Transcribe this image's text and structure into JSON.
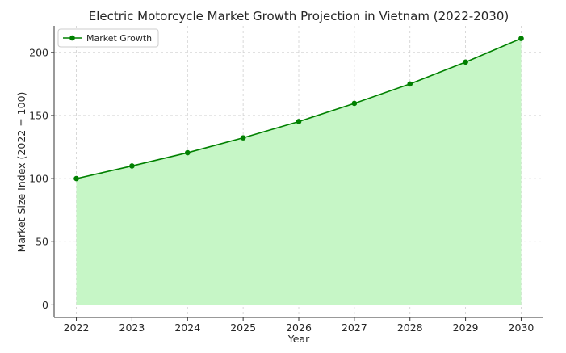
{
  "chart_data": {
    "type": "area",
    "title": "Electric Motorcycle Market Growth Projection in Vietnam (2022-2030)",
    "xlabel": "Year",
    "ylabel": "Market Size Index (2022 = 100)",
    "x": [
      2022,
      2023,
      2024,
      2025,
      2026,
      2027,
      2028,
      2029,
      2030
    ],
    "x_tick_labels": [
      "2022",
      "2023",
      "2024",
      "2025",
      "2026",
      "2027",
      "2028",
      "2029",
      "2030"
    ],
    "y_ticks": [
      0,
      50,
      100,
      150,
      200
    ],
    "y_tick_labels": [
      "0",
      "50",
      "100",
      "150",
      "200"
    ],
    "ylim": [
      -10,
      221
    ],
    "xlim": [
      2021.6,
      2030.4
    ],
    "grid": true,
    "legend_position": "top-left",
    "series": [
      {
        "name": "Market Growth",
        "values": [
          100,
          110,
          120.5,
          132.3,
          145.2,
          159.6,
          175,
          192.3,
          211
        ],
        "line_color": "#008000",
        "fill_color": "#c6f6c6",
        "marker": "circle"
      }
    ]
  }
}
